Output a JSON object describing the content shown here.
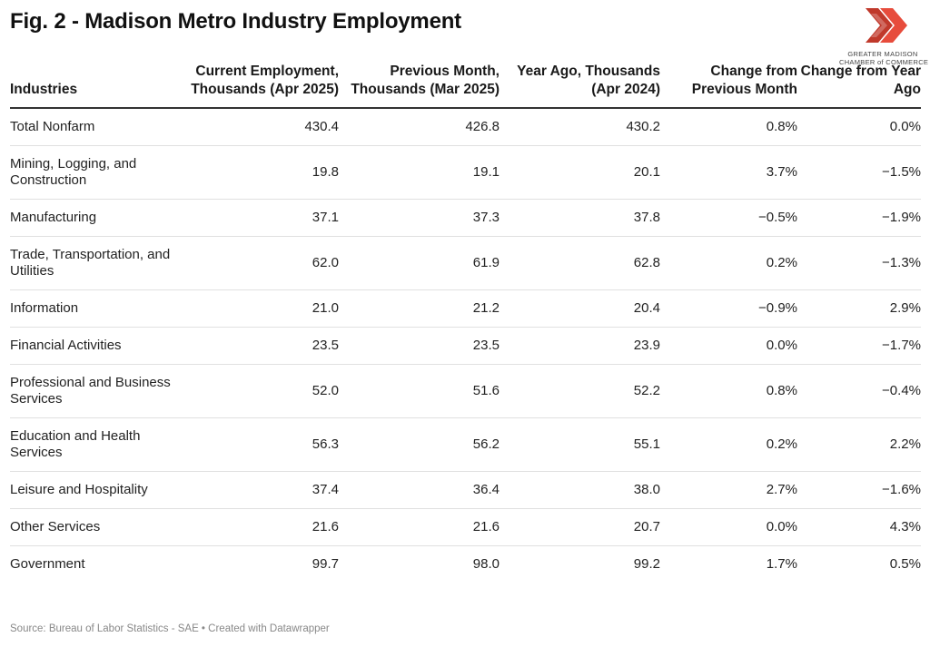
{
  "title": "Fig. 2 - Madison Metro Industry Employment",
  "logo": {
    "line1": "GREATER MADISON",
    "line2": "CHAMBER of COMMERCE",
    "colors": [
      "#c0392b",
      "#e74c3c"
    ]
  },
  "source": "Source: Bureau of Labor Statistics - SAE • Created with Datawrapper",
  "chart_data": {
    "type": "table",
    "title": "Fig. 2 - Madison Metro Industry Employment",
    "columns": [
      "Industries",
      "Current Employment, Thousands (Apr 2025)",
      "Previous Month, Thousands (Mar 2025)",
      "Year Ago, Thousands (Apr 2024)",
      "Change from Previous Month",
      "Change from Year Ago"
    ],
    "rows": [
      [
        "Total Nonfarm",
        "430.4",
        "426.8",
        "430.2",
        "0.8%",
        "0.0%"
      ],
      [
        "Mining, Logging, and Construction",
        "19.8",
        "19.1",
        "20.1",
        "3.7%",
        "−1.5%"
      ],
      [
        "Manufacturing",
        "37.1",
        "37.3",
        "37.8",
        "−0.5%",
        "−1.9%"
      ],
      [
        "Trade, Transportation, and Utilities",
        "62.0",
        "61.9",
        "62.8",
        "0.2%",
        "−1.3%"
      ],
      [
        "Information",
        "21.0",
        "21.2",
        "20.4",
        "−0.9%",
        "2.9%"
      ],
      [
        "Financial Activities",
        "23.5",
        "23.5",
        "23.9",
        "0.0%",
        "−1.7%"
      ],
      [
        "Professional and Business Services",
        "52.0",
        "51.6",
        "52.2",
        "0.8%",
        "−0.4%"
      ],
      [
        "Education and Health Services",
        "56.3",
        "56.2",
        "55.1",
        "0.2%",
        "2.2%"
      ],
      [
        "Leisure and Hospitality",
        "37.4",
        "36.4",
        "38.0",
        "2.7%",
        "−1.6%"
      ],
      [
        "Other Services",
        "21.6",
        "21.6",
        "20.7",
        "0.0%",
        "4.3%"
      ],
      [
        "Government",
        "99.7",
        "98.0",
        "99.2",
        "1.7%",
        "0.5%"
      ]
    ]
  }
}
